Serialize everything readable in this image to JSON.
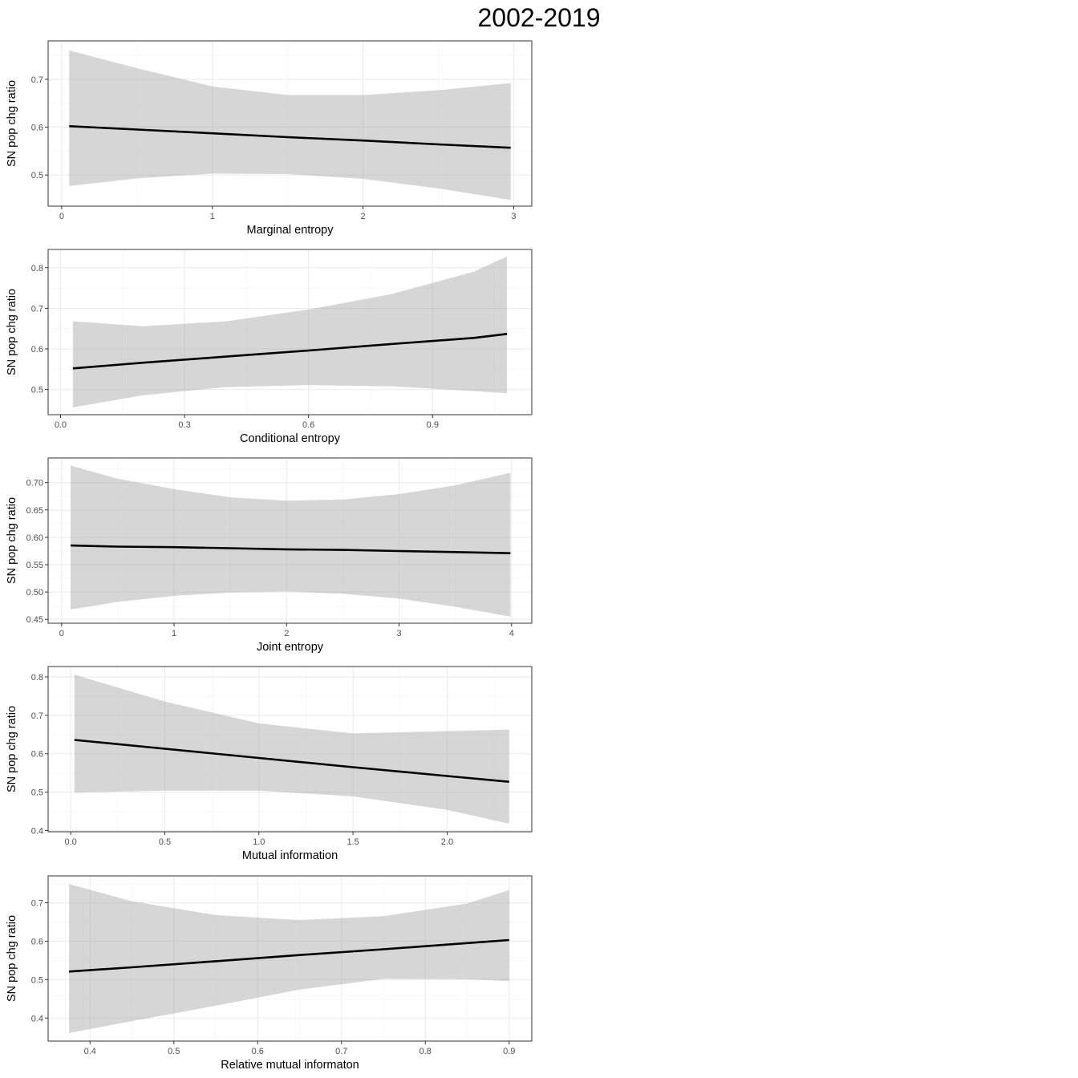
{
  "title": "2002-2019",
  "chart_data": [
    {
      "type": "line",
      "title": "",
      "xlabel": "Marginal entropy",
      "ylabel": "SN pop chg ratio",
      "xlim": [
        -0.09,
        3.12
      ],
      "ylim": [
        0.435,
        0.78
      ],
      "xticks": [
        0,
        1,
        2,
        3
      ],
      "xtick_labels": [
        "0",
        "1",
        "2",
        "3"
      ],
      "xminor": [
        0.5,
        1.5,
        2.5
      ],
      "yticks": [
        0.5,
        0.6,
        0.7
      ],
      "ytick_labels": [
        "0.5",
        "0.6",
        "0.7"
      ],
      "yminor": [
        0.45,
        0.55,
        0.65,
        0.75
      ],
      "grid": true,
      "series": [
        {
          "x": [
            0.05,
            0.5,
            1.0,
            1.5,
            2.0,
            2.5,
            2.98
          ],
          "y": [
            0.602,
            0.595,
            0.587,
            0.579,
            0.572,
            0.564,
            0.557
          ],
          "lower": [
            0.477,
            0.493,
            0.503,
            0.502,
            0.492,
            0.472,
            0.448
          ],
          "upper": [
            0.76,
            0.723,
            0.685,
            0.667,
            0.667,
            0.677,
            0.692
          ]
        }
      ]
    },
    {
      "type": "line",
      "title": "",
      "xlabel": "Conditional entropy",
      "ylabel": "SN pop chg ratio",
      "xlim": [
        -0.03,
        1.14
      ],
      "ylim": [
        0.438,
        0.845
      ],
      "xticks": [
        0.0,
        0.3,
        0.6,
        0.9
      ],
      "xtick_labels": [
        "0.0",
        "0.3",
        "0.6",
        "0.9"
      ],
      "xminor": [
        0.15,
        0.45,
        0.75,
        1.05
      ],
      "yticks": [
        0.5,
        0.6,
        0.7,
        0.8
      ],
      "ytick_labels": [
        "0.5",
        "0.6",
        "0.7",
        "0.8"
      ],
      "yminor": [
        0.45,
        0.55,
        0.65,
        0.75
      ],
      "grid": true,
      "series": [
        {
          "x": [
            0.03,
            0.2,
            0.4,
            0.6,
            0.8,
            1.0,
            1.08
          ],
          "y": [
            0.552,
            0.566,
            0.581,
            0.596,
            0.612,
            0.627,
            0.637
          ],
          "lower": [
            0.456,
            0.486,
            0.506,
            0.511,
            0.508,
            0.496,
            0.491
          ],
          "upper": [
            0.668,
            0.656,
            0.668,
            0.697,
            0.735,
            0.79,
            0.828
          ]
        }
      ]
    },
    {
      "type": "line",
      "title": "",
      "xlabel": "Joint entropy",
      "ylabel": "SN pop chg ratio",
      "xlim": [
        -0.12,
        4.18
      ],
      "ylim": [
        0.443,
        0.745
      ],
      "xticks": [
        0,
        1,
        2,
        3,
        4
      ],
      "xtick_labels": [
        "0",
        "1",
        "2",
        "3",
        "4"
      ],
      "xminor": [
        0.5,
        1.5,
        2.5,
        3.5
      ],
      "yticks": [
        0.45,
        0.5,
        0.55,
        0.6,
        0.65,
        0.7
      ],
      "ytick_labels": [
        "0.45",
        "0.50",
        "0.55",
        "0.60",
        "0.65",
        "0.70"
      ],
      "yminor": [
        0.475,
        0.525,
        0.575,
        0.625,
        0.675,
        0.725
      ],
      "grid": true,
      "series": [
        {
          "x": [
            0.08,
            0.5,
            1.0,
            1.5,
            2.0,
            2.5,
            3.0,
            3.5,
            3.99
          ],
          "y": [
            0.585,
            0.583,
            0.582,
            0.58,
            0.578,
            0.577,
            0.575,
            0.573,
            0.571
          ],
          "lower": [
            0.468,
            0.482,
            0.493,
            0.499,
            0.501,
            0.497,
            0.488,
            0.473,
            0.455
          ],
          "upper": [
            0.731,
            0.707,
            0.688,
            0.673,
            0.667,
            0.669,
            0.679,
            0.695,
            0.718
          ]
        }
      ]
    },
    {
      "type": "line",
      "title": "",
      "xlabel": "Mutual information",
      "ylabel": "SN pop chg ratio",
      "xlim": [
        -0.12,
        2.45
      ],
      "ylim": [
        0.397,
        0.827
      ],
      "xticks": [
        0.0,
        0.5,
        1.0,
        1.5,
        2.0
      ],
      "xtick_labels": [
        "0.0",
        "0.5",
        "1.0",
        "1.5",
        "2.0"
      ],
      "xminor": [
        0.25,
        0.75,
        1.25,
        1.75,
        2.25
      ],
      "yticks": [
        0.4,
        0.5,
        0.6,
        0.7,
        0.8
      ],
      "ytick_labels": [
        "0.4",
        "0.5",
        "0.6",
        "0.7",
        "0.8"
      ],
      "yminor": [
        0.45,
        0.55,
        0.65,
        0.75
      ],
      "grid": true,
      "series": [
        {
          "x": [
            0.02,
            0.5,
            1.0,
            1.5,
            2.0,
            2.33
          ],
          "y": [
            0.636,
            0.613,
            0.589,
            0.565,
            0.542,
            0.527
          ],
          "lower": [
            0.499,
            0.504,
            0.504,
            0.489,
            0.454,
            0.418
          ],
          "upper": [
            0.806,
            0.736,
            0.679,
            0.653,
            0.659,
            0.663
          ]
        }
      ]
    },
    {
      "type": "line",
      "title": "",
      "xlabel": "Relative mutual informaton",
      "ylabel": "SN pop chg ratio",
      "xlim": [
        0.35,
        0.927
      ],
      "ylim": [
        0.34,
        0.77
      ],
      "xticks": [
        0.4,
        0.5,
        0.6,
        0.7,
        0.8,
        0.9
      ],
      "xtick_labels": [
        "0.4",
        "0.5",
        "0.6",
        "0.7",
        "0.8",
        "0.9"
      ],
      "xminor": [
        0.45,
        0.55,
        0.65,
        0.75,
        0.85
      ],
      "yticks": [
        0.4,
        0.5,
        0.6,
        0.7
      ],
      "ytick_labels": [
        "0.4",
        "0.5",
        "0.6",
        "0.7"
      ],
      "yminor": [
        0.35,
        0.45,
        0.55,
        0.65,
        0.75
      ],
      "grid": true,
      "series": [
        {
          "x": [
            0.375,
            0.45,
            0.55,
            0.65,
            0.75,
            0.85,
            0.9
          ],
          "y": [
            0.521,
            0.532,
            0.548,
            0.564,
            0.579,
            0.595,
            0.603
          ],
          "lower": [
            0.361,
            0.392,
            0.432,
            0.474,
            0.502,
            0.501,
            0.496
          ],
          "upper": [
            0.749,
            0.704,
            0.668,
            0.655,
            0.665,
            0.698,
            0.733
          ]
        }
      ]
    }
  ]
}
